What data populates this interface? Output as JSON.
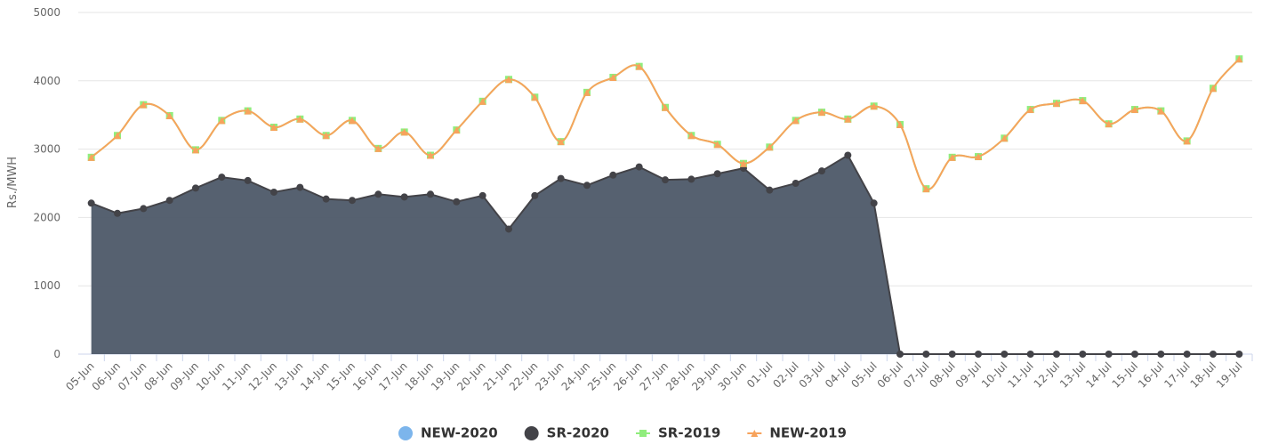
{
  "chart_data": {
    "type": "line",
    "y_label": "Rs./MWH",
    "categories": [
      "05-Jun",
      "06-Jun",
      "07-Jun",
      "08-Jun",
      "09-Jun",
      "10-Jun",
      "11-Jun",
      "12-Jun",
      "13-Jun",
      "14-Jun",
      "15-Jun",
      "16-Jun",
      "17-Jun",
      "18-Jun",
      "19-Jun",
      "20-Jun",
      "21-Jun",
      "22-Jun",
      "23-Jun",
      "24-Jun",
      "25-Jun",
      "26-Jun",
      "27-Jun",
      "28-Jun",
      "29-Jun",
      "30-Jun",
      "01-Jul",
      "02-Jul",
      "03-Jul",
      "04-Jul",
      "05-Jul",
      "06-Jul",
      "07-Jul",
      "08-Jul",
      "09-Jul",
      "10-Jul",
      "11-Jul",
      "12-Jul",
      "13-Jul",
      "14-Jul",
      "15-Jul",
      "16-Jul",
      "17-Jul",
      "18-Jul",
      "19-Jul"
    ],
    "series": [
      {
        "name": "NEW-2020",
        "color": "#7cb5ec",
        "type": "spline",
        "marker": "circle",
        "values": [
          null,
          null,
          null,
          null,
          null,
          null,
          null,
          null,
          null,
          null,
          null,
          null,
          null,
          null,
          null,
          null,
          null,
          null,
          null,
          null,
          null,
          null,
          null,
          null,
          null,
          null,
          null,
          null,
          null,
          null,
          null,
          null,
          null,
          null,
          null,
          null,
          null,
          null,
          null,
          null,
          null,
          null,
          null,
          null,
          null
        ]
      },
      {
        "name": "SR-2020",
        "color": "#434348",
        "type": "area",
        "marker": "circle",
        "values": [
          2210,
          2060,
          2130,
          2250,
          2430,
          2590,
          2540,
          2370,
          2440,
          2270,
          2250,
          2340,
          2300,
          2340,
          2230,
          2320,
          1830,
          2320,
          2570,
          2470,
          2620,
          2740,
          2550,
          2560,
          2640,
          2720,
          2400,
          2500,
          2680,
          2910,
          2210,
          0,
          0,
          0,
          0,
          0,
          0,
          0,
          0,
          0,
          0,
          0,
          0,
          0,
          0
        ]
      },
      {
        "name": "SR-2019",
        "color": "#90ed7d",
        "type": "spline",
        "marker": "square",
        "values": [
          2880,
          3200,
          3650,
          3490,
          2990,
          3420,
          3560,
          3320,
          3440,
          3200,
          3420,
          3010,
          3250,
          2910,
          3280,
          3700,
          4020,
          3760,
          3110,
          3830,
          4050,
          4210,
          3610,
          3200,
          3070,
          2790,
          3030,
          3420,
          3540,
          3440,
          3630,
          3360,
          2420,
          2880,
          2890,
          3160,
          3580,
          3670,
          3710,
          3370,
          3580,
          3560,
          3120,
          3890,
          4320
        ]
      },
      {
        "name": "NEW-2019",
        "color": "#f7a35c",
        "type": "spline",
        "marker": "triangle",
        "values": [
          2880,
          3200,
          3650,
          3490,
          2990,
          3420,
          3560,
          3320,
          3440,
          3200,
          3420,
          3010,
          3250,
          2910,
          3280,
          3700,
          4020,
          3760,
          3110,
          3830,
          4050,
          4210,
          3610,
          3200,
          3070,
          2790,
          3030,
          3420,
          3540,
          3440,
          3630,
          3360,
          2420,
          2880,
          2890,
          3160,
          3580,
          3670,
          3710,
          3370,
          3580,
          3560,
          3120,
          3890,
          4320
        ]
      }
    ],
    "ylim": [
      0,
      5000
    ],
    "yticks": [
      0,
      1000,
      2000,
      3000,
      4000,
      5000
    ],
    "grid": true,
    "legend": "bottom"
  }
}
